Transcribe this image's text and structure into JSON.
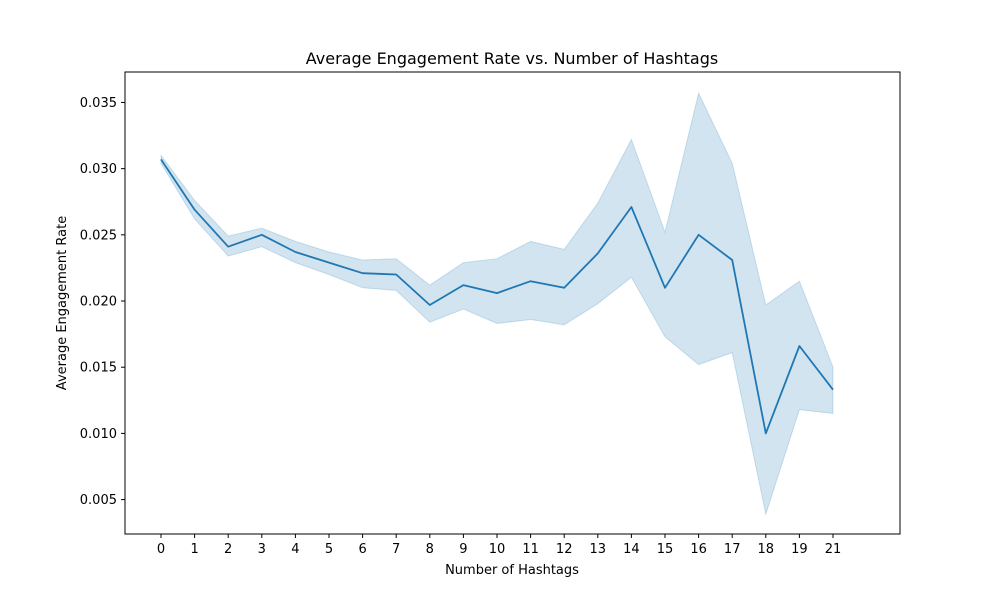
{
  "chart_data": {
    "type": "line",
    "title": "Average Engagement Rate vs. Number of Hashtags",
    "xlabel": "Number of Hashtags",
    "ylabel": "Average Engagement Rate",
    "x_tick_labels": [
      "0",
      "1",
      "2",
      "3",
      "4",
      "5",
      "6",
      "7",
      "8",
      "9",
      "10",
      "11",
      "12",
      "13",
      "14",
      "15",
      "16",
      "17",
      "18",
      "19",
      "21"
    ],
    "y_ticks": [
      0.005,
      0.01,
      0.015,
      0.02,
      0.025,
      0.03,
      0.035
    ],
    "y_tick_labels": [
      "0.005",
      "0.010",
      "0.015",
      "0.020",
      "0.025",
      "0.030",
      "0.035"
    ],
    "ylim": [
      0.0024,
      0.0373
    ],
    "grid": false,
    "colors": {
      "line": "#1f77b4",
      "band": "#1f77b4"
    },
    "series": [
      {
        "x": [
          0,
          1,
          2,
          3,
          4,
          5,
          6,
          7,
          8,
          9,
          10,
          11,
          12,
          13,
          14,
          15,
          16,
          17,
          18,
          19,
          21
        ],
        "values": [
          0.0307,
          0.0269,
          0.0241,
          0.025,
          0.0237,
          0.0229,
          0.0221,
          0.022,
          0.0197,
          0.0212,
          0.0206,
          0.0215,
          0.021,
          0.0236,
          0.0271,
          0.021,
          0.025,
          0.0231,
          0.01,
          0.0166,
          0.0133
        ],
        "ci_low": [
          0.0304,
          0.0262,
          0.0234,
          0.0241,
          0.0229,
          0.022,
          0.021,
          0.0208,
          0.0184,
          0.0194,
          0.0183,
          0.0186,
          0.0182,
          0.0198,
          0.0218,
          0.0173,
          0.0152,
          0.0161,
          0.0039,
          0.0118,
          0.0115
        ],
        "ci_high": [
          0.031,
          0.0276,
          0.0249,
          0.0255,
          0.0245,
          0.0237,
          0.0231,
          0.0232,
          0.0212,
          0.0229,
          0.0232,
          0.0245,
          0.0239,
          0.0274,
          0.0322,
          0.0252,
          0.0357,
          0.0304,
          0.0197,
          0.0215,
          0.015
        ]
      }
    ]
  }
}
